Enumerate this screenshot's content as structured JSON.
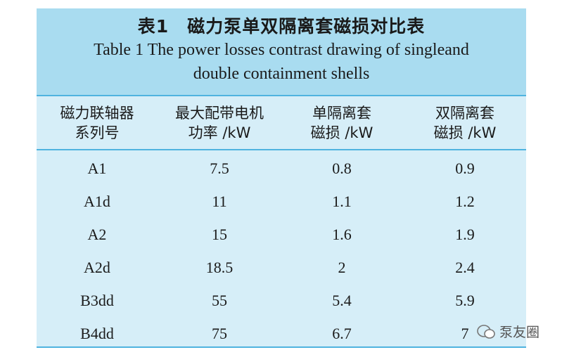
{
  "table": {
    "title_cn": "表1　磁力泵单双隔离套磁损对比表",
    "title_en_lines": [
      "Table 1  The power losses contrast drawing of singleand",
      "double containment shells"
    ],
    "headers": [
      [
        "磁力联轴器",
        "系列号"
      ],
      [
        "最大配带电机",
        "功率 /kW"
      ],
      [
        "单隔离套",
        "磁损 /kW"
      ],
      [
        "双隔离套",
        "磁损 /kW"
      ]
    ],
    "rows": [
      [
        "A1",
        "7.5",
        "0.8",
        "0.9"
      ],
      [
        "A1d",
        "11",
        "1.1",
        "1.2"
      ],
      [
        "A2",
        "15",
        "1.6",
        "1.9"
      ],
      [
        "A2d",
        "18.5",
        "2",
        "2.4"
      ],
      [
        "B3dd",
        "55",
        "5.4",
        "5.9"
      ],
      [
        "B4dd",
        "75",
        "6.7",
        "7"
      ]
    ]
  },
  "watermark": "泵友圈"
}
